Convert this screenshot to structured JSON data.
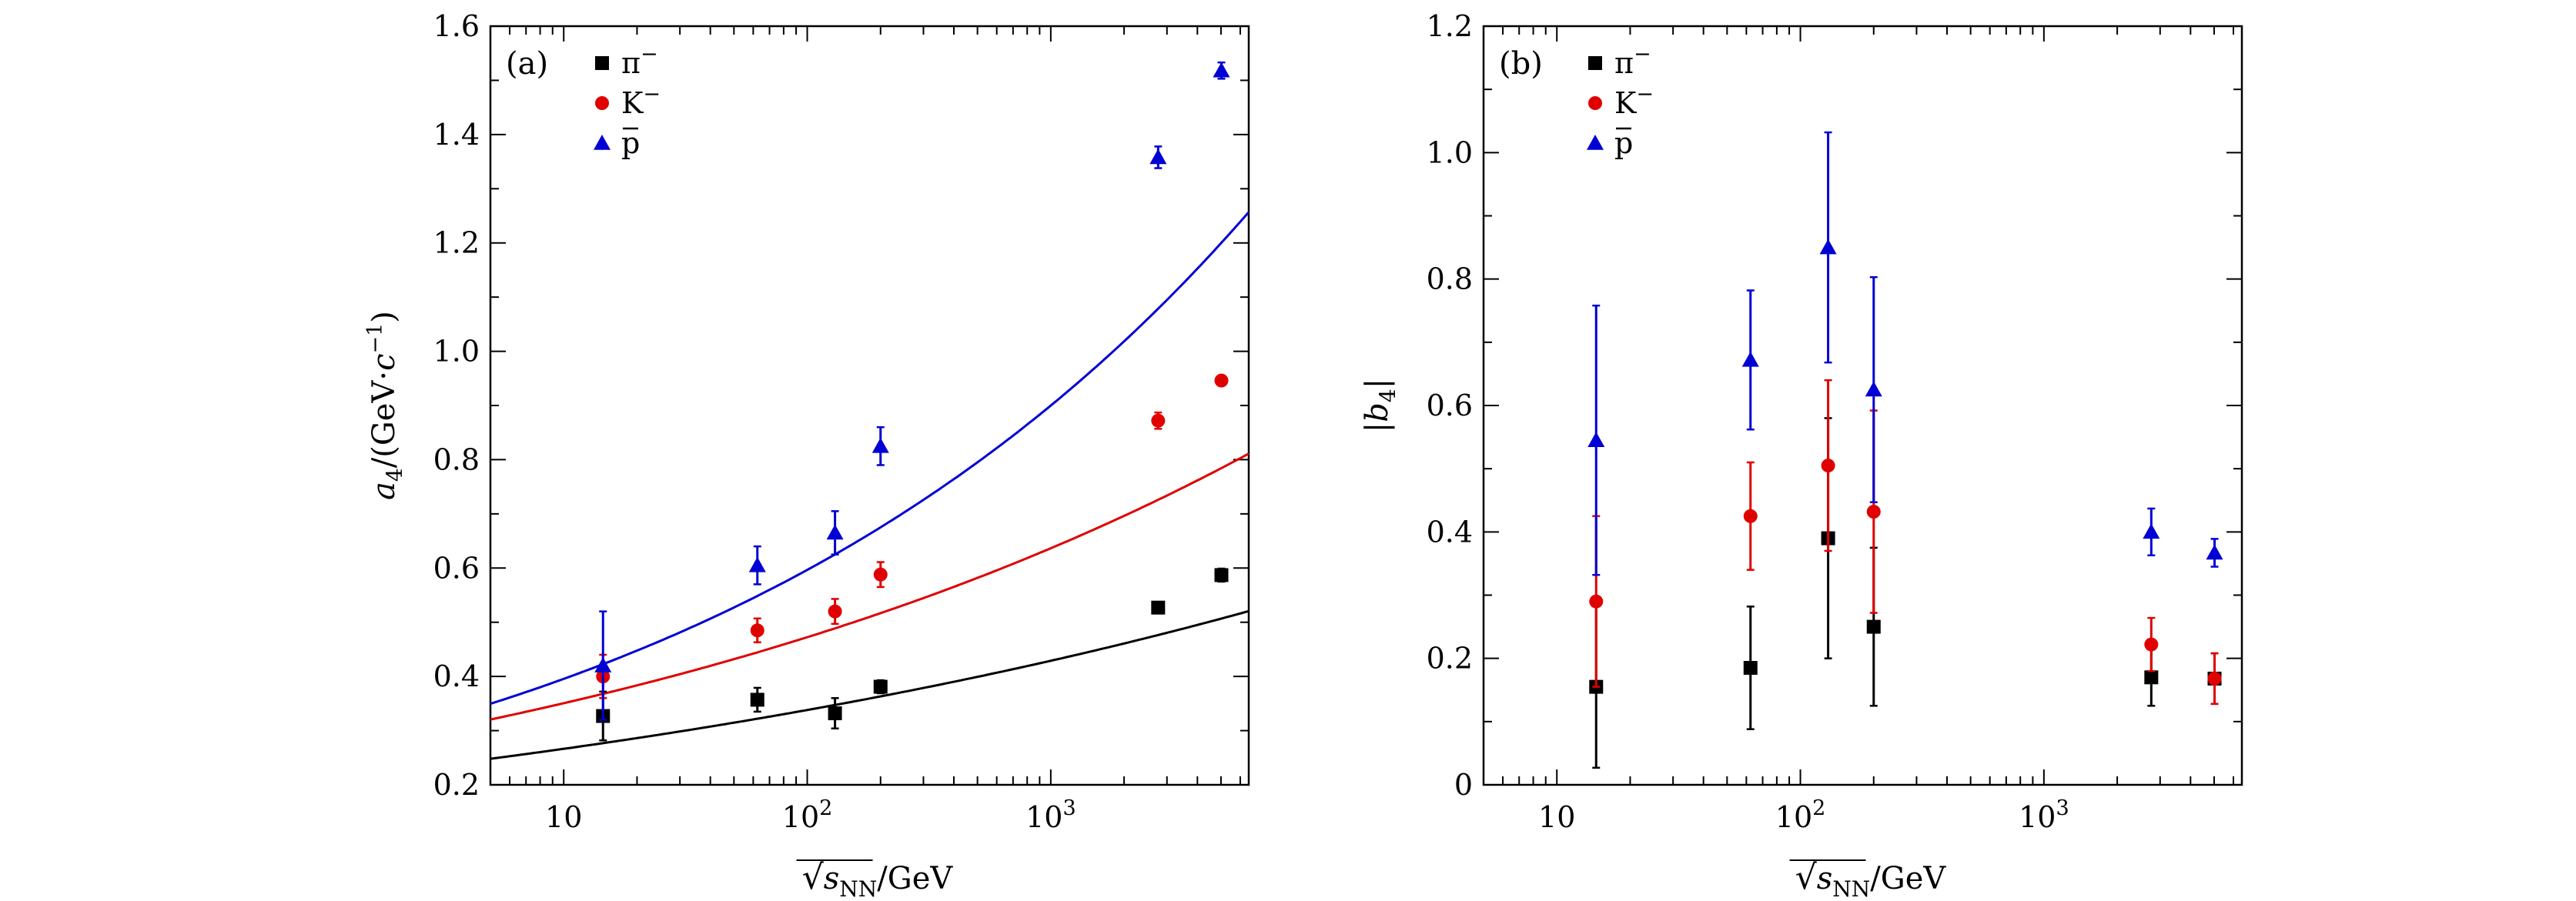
{
  "colors": {
    "pi": "#000000",
    "K": "#e00000",
    "pbar": "#0000d4",
    "frame": "#000000"
  },
  "markers": {
    "pi": "square",
    "K": "circle",
    "pbar": "triangle"
  },
  "chart_data": [
    {
      "type": "scatter",
      "panel": "(a)",
      "xscale": "log",
      "xlim": [
        5,
        6500
      ],
      "ylim": [
        0.2,
        1.6
      ],
      "xlabel_sqrt": "s",
      "xlabel_sub": "NN",
      "xlabel_unit": "/GeV",
      "ylabel": "a4/(GeV·c⁻¹)",
      "ylabel_parts": {
        "sym": "a",
        "sub": "4",
        "pre": "/(GeV·",
        "c": "c",
        "sup": "−1",
        "post": ")"
      },
      "xticks": [
        {
          "value": 10,
          "base": "10",
          "exp": ""
        },
        {
          "value": 100,
          "base": "10",
          "exp": "2"
        },
        {
          "value": 1000,
          "base": "10",
          "exp": "3"
        }
      ],
      "yticks": [
        {
          "value": 0.2,
          "label": "0.2"
        },
        {
          "value": 0.4,
          "label": "0.4"
        },
        {
          "value": 0.6,
          "label": "0.6"
        },
        {
          "value": 0.8,
          "label": "0.8"
        },
        {
          "value": 1.0,
          "label": "1.0"
        },
        {
          "value": 1.2,
          "label": "1.2"
        },
        {
          "value": 1.4,
          "label": "1.4"
        },
        {
          "value": 1.6,
          "label": "1.6"
        }
      ],
      "legend_position": "top-left",
      "series": [
        {
          "name": "π−",
          "key": "pi",
          "x": [
            14.5,
            62.4,
            130,
            200,
            2760,
            5020
          ],
          "y": [
            0.327,
            0.357,
            0.332,
            0.381,
            0.527,
            0.587
          ],
          "err": [
            0.045,
            0.022,
            0.028,
            0.012,
            0.01,
            0.012
          ],
          "fit": {
            "a": 0.248,
            "b": 0.1034
          }
        },
        {
          "name": "K−",
          "key": "K",
          "x": [
            14.5,
            62.4,
            130,
            200,
            2760,
            5020
          ],
          "y": [
            0.4,
            0.485,
            0.52,
            0.588,
            0.872,
            0.946
          ],
          "err": [
            0.04,
            0.022,
            0.023,
            0.023,
            0.015,
            0.008
          ],
          "fit": {
            "a": 0.3205,
            "b": 0.1295
          }
        },
        {
          "name": "p̄",
          "key": "pbar",
          "x": [
            14.5,
            62.4,
            130,
            200,
            2760,
            5020
          ],
          "y": [
            0.42,
            0.605,
            0.665,
            0.825,
            1.358,
            1.518
          ],
          "err": [
            0.1,
            0.035,
            0.04,
            0.035,
            0.02,
            0.015
          ],
          "fit": {
            "a": 0.3495,
            "b": 0.1785
          }
        }
      ]
    },
    {
      "type": "scatter",
      "panel": "(b)",
      "xscale": "log",
      "xlim": [
        5,
        6500
      ],
      "ylim": [
        0,
        1.2
      ],
      "xlabel_sqrt": "s",
      "xlabel_sub": "NN",
      "xlabel_unit": "/GeV",
      "ylabel": "|b4|",
      "ylabel_parts": {
        "pre": "|",
        "sym": "b",
        "sub": "4",
        "post": "|"
      },
      "xticks": [
        {
          "value": 10,
          "base": "10",
          "exp": ""
        },
        {
          "value": 100,
          "base": "10",
          "exp": "2"
        },
        {
          "value": 1000,
          "base": "10",
          "exp": "3"
        }
      ],
      "yticks": [
        {
          "value": 0,
          "label": "0"
        },
        {
          "value": 0.2,
          "label": "0.2"
        },
        {
          "value": 0.4,
          "label": "0.4"
        },
        {
          "value": 0.6,
          "label": "0.6"
        },
        {
          "value": 0.8,
          "label": "0.8"
        },
        {
          "value": 1.0,
          "label": "1.0"
        },
        {
          "value": 1.2,
          "label": "1.2"
        }
      ],
      "legend_position": "top-left",
      "series": [
        {
          "name": "π−",
          "key": "pi",
          "x": [
            14.5,
            62.4,
            130,
            200,
            2760,
            5020
          ],
          "y": [
            0.155,
            0.185,
            0.39,
            0.25,
            0.17,
            0.168
          ],
          "err": [
            0.128,
            0.097,
            0.19,
            0.125,
            0.045,
            0.04
          ]
        },
        {
          "name": "K−",
          "key": "K",
          "x": [
            14.5,
            62.4,
            130,
            200,
            2760,
            5020
          ],
          "y": [
            0.29,
            0.425,
            0.505,
            0.432,
            0.222,
            0.168
          ],
          "err": [
            0.135,
            0.085,
            0.135,
            0.16,
            0.042,
            0.04
          ]
        },
        {
          "name": "p̄",
          "key": "pbar",
          "x": [
            14.5,
            62.4,
            130,
            200,
            2760,
            5020
          ],
          "y": [
            0.545,
            0.672,
            0.85,
            0.625,
            0.4,
            0.367
          ],
          "err": [
            0.213,
            0.11,
            0.182,
            0.178,
            0.037,
            0.022
          ]
        }
      ]
    }
  ]
}
